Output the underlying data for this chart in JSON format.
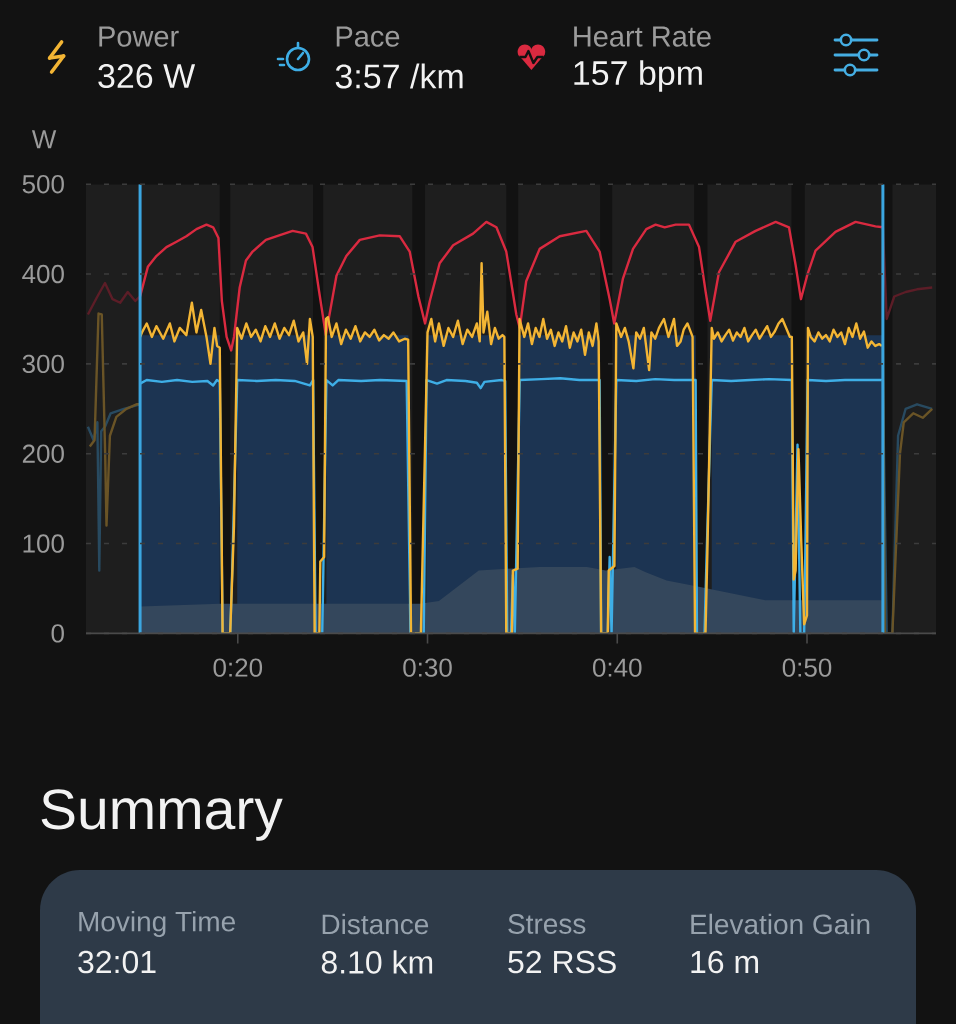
{
  "chart_data": [
    {
      "type": "line",
      "ylabel": "W",
      "xlim": [
        12.0,
        56.8
      ],
      "ylim": [
        0,
        500
      ],
      "xticks": [
        {
          "value": 20,
          "label": "0:20"
        },
        {
          "value": 30,
          "label": "0:30"
        },
        {
          "value": 40,
          "label": "0:40"
        },
        {
          "value": 50,
          "label": "0:50"
        }
      ],
      "yticks": [
        0,
        100,
        200,
        300,
        400,
        500
      ],
      "grid": "y",
      "legend": "top",
      "annotations": [
        "326 W",
        "3:57 /km",
        "157 bpm"
      ],
      "bands": [
        {
          "axis": "x",
          "from": 12.0,
          "to": 19.05,
          "color": "#1e1e1e"
        },
        {
          "axis": "x",
          "from": 19.6,
          "to": 23.97,
          "color": "#1e1e1e"
        },
        {
          "axis": "x",
          "from": 24.5,
          "to": 29.2,
          "color": "#1e1e1e"
        },
        {
          "axis": "x",
          "from": 29.87,
          "to": 34.15,
          "color": "#1e1e1e"
        },
        {
          "axis": "x",
          "from": 34.78,
          "to": 39.1,
          "color": "#1e1e1e"
        },
        {
          "axis": "x",
          "from": 39.73,
          "to": 44.05,
          "color": "#1e1e1e"
        },
        {
          "axis": "x",
          "from": 44.75,
          "to": 49.18,
          "color": "#1e1e1e"
        },
        {
          "axis": "x",
          "from": 49.88,
          "to": 54.0,
          "color": "#1e1e1e"
        },
        {
          "axis": "x",
          "from": 54.5,
          "to": 56.8,
          "color": "#1e1e1e"
        }
      ],
      "ref_lines": [
        {
          "axis": "x",
          "value": 14.85,
          "color": "#3ba6e0"
        },
        {
          "axis": "x",
          "value": 54.0,
          "color": "#3ba6e0"
        }
      ],
      "series": [
        {
          "type": "area",
          "color": "#1c3452",
          "x": [
            14.85,
            14.85,
            19.05,
            19.05,
            19.97,
            19.97,
            23.97,
            23.97,
            24.67,
            24.67,
            28.99,
            28.99,
            29.94,
            29.94,
            34.09,
            34.09,
            34.86,
            34.86,
            39.07,
            39.07,
            39.95,
            39.95,
            44.13,
            44.13,
            44.98,
            44.98,
            49.2,
            49.2,
            50.03,
            50.03,
            53.96,
            53.96
          ],
          "values": [
            0,
            332,
            332,
            0,
            0,
            332,
            332,
            0,
            0,
            332,
            332,
            0,
            0,
            332,
            332,
            0,
            0,
            332,
            332,
            0,
            0,
            332,
            332,
            0,
            0,
            332,
            332,
            0,
            0,
            332,
            332,
            0
          ]
        },
        {
          "type": "area",
          "color": "#34475c",
          "x": [
            14.85,
            19.05,
            24.3,
            29.6,
            30.6,
            32.7,
            34.2,
            35.9,
            38.4,
            39.4,
            40.9,
            41.5,
            42.6,
            44.3,
            47.8,
            51.5,
            54.0
          ],
          "values": [
            30,
            33,
            33,
            33,
            36,
            70,
            72,
            74,
            74,
            70,
            74,
            68,
            59,
            52,
            37,
            37,
            37
          ]
        },
        {
          "color": "#6a5426",
          "x": [
            12.2,
            12.45,
            12.66,
            12.83,
            13.01,
            13.08,
            13.26,
            13.6,
            14.13,
            14.66,
            14.85,
            34,
            54.0,
            54.1,
            54.5,
            54.9,
            55.1,
            55.6,
            56.1,
            56.6
          ],
          "values": [
            208,
            215,
            356,
            355,
            200,
            120,
            220,
            241,
            250,
            255,
            255,
            null,
            320,
            0,
            0,
            200,
            235,
            245,
            240,
            250
          ]
        },
        {
          "color": "#284a60",
          "x": [
            12.1,
            12.4,
            12.6,
            12.7,
            12.8,
            13.0,
            13.3,
            14.0,
            14.85,
            34,
            54.0,
            54.2,
            54.5,
            54.8,
            55.2,
            55.8,
            56.6
          ],
          "values": [
            230,
            215,
            235,
            70,
            225,
            230,
            245,
            250,
            255,
            null,
            282,
            0,
            0,
            220,
            250,
            255,
            250
          ]
        },
        {
          "color": "#5c1d27",
          "x": [
            12.1,
            12.6,
            13.0,
            13.4,
            13.8,
            14.2,
            14.6,
            14.85,
            34,
            54.0,
            54.2,
            54.6,
            55.2,
            55.8,
            56.6
          ],
          "values": [
            355,
            375,
            390,
            372,
            368,
            380,
            370,
            375,
            null,
            452,
            350,
            375,
            380,
            383,
            385
          ]
        },
        {
          "name": "Power",
          "color": "#f3b534",
          "x": [
            14.85,
            14.95,
            15.2,
            15.47,
            15.71,
            16.07,
            16.42,
            16.66,
            16.94,
            17.29,
            17.58,
            17.82,
            18.07,
            18.35,
            18.56,
            18.77,
            18.91,
            19.05,
            19.2,
            19.6,
            19.8,
            19.97,
            20.2,
            20.45,
            20.7,
            20.95,
            21.2,
            21.45,
            21.7,
            21.95,
            22.2,
            22.45,
            22.7,
            22.95,
            23.2,
            23.45,
            23.65,
            23.8,
            23.95,
            24.05,
            24.3,
            24.35,
            24.55,
            24.65,
            24.75,
            24.95,
            25.2,
            25.45,
            25.7,
            25.95,
            26.2,
            26.45,
            26.7,
            26.95,
            27.2,
            27.45,
            27.7,
            27.95,
            28.2,
            28.5,
            28.8,
            28.98,
            29.13,
            29.65,
            29.86,
            30.0,
            30.2,
            30.4,
            30.6,
            30.85,
            31.1,
            31.35,
            31.6,
            31.85,
            32.1,
            32.35,
            32.6,
            32.75,
            32.85,
            32.95,
            33.15,
            33.35,
            33.55,
            33.75,
            33.95,
            34.05,
            34.15,
            34.45,
            34.5,
            34.75,
            34.85,
            35.1,
            35.3,
            35.5,
            35.7,
            35.9,
            36.1,
            36.3,
            36.5,
            36.7,
            36.9,
            37.1,
            37.3,
            37.5,
            37.7,
            37.9,
            38.1,
            38.3,
            38.5,
            38.7,
            38.9,
            39.02,
            39.15,
            39.5,
            39.55,
            39.85,
            39.95,
            40.2,
            40.4,
            40.6,
            40.85,
            41.0,
            41.2,
            41.4,
            41.68,
            41.8,
            42.0,
            42.2,
            42.46,
            42.7,
            42.99,
            43.15,
            43.34,
            43.5,
            43.7,
            43.97,
            44.1,
            44.65,
            44.75,
            44.98,
            45.1,
            45.3,
            45.5,
            45.7,
            45.9,
            46.1,
            46.3,
            46.5,
            46.7,
            46.9,
            47.1,
            47.3,
            47.5,
            47.7,
            47.9,
            48.1,
            48.3,
            48.5,
            48.7,
            48.9,
            49.1,
            49.2,
            49.3,
            49.4,
            49.55,
            49.7,
            49.85,
            50.0,
            50.05,
            50.2,
            50.4,
            50.6,
            50.8,
            51.0,
            51.2,
            51.4,
            51.6,
            51.8,
            52.0,
            52.2,
            52.4,
            52.6,
            52.8,
            53.0,
            53.2,
            53.4,
            53.6,
            53.8,
            53.95
          ],
          "values": [
            330,
            335,
            345,
            330,
            342,
            328,
            345,
            325,
            340,
            332,
            368,
            335,
            360,
            330,
            300,
            340,
            320,
            318,
            0,
            0,
            120,
            340,
            328,
            345,
            330,
            338,
            325,
            342,
            330,
            345,
            328,
            340,
            332,
            348,
            325,
            335,
            300,
            350,
            330,
            0,
            0,
            80,
            85,
            350,
            352,
            330,
            345,
            322,
            338,
            328,
            342,
            325,
            335,
            330,
            338,
            326,
            332,
            328,
            335,
            325,
            328,
            327,
            0,
            0,
            200,
            335,
            350,
            325,
            345,
            320,
            340,
            330,
            348,
            322,
            338,
            330,
            345,
            325,
            412,
            335,
            358,
            322,
            340,
            328,
            332,
            330,
            0,
            0,
            70,
            72,
            350,
            330,
            345,
            322,
            340,
            330,
            350,
            328,
            338,
            320,
            335,
            325,
            342,
            318,
            335,
            325,
            338,
            310,
            335,
            320,
            345,
            325,
            0,
            0,
            70,
            75,
            345,
            330,
            340,
            325,
            295,
            335,
            328,
            340,
            293,
            335,
            328,
            340,
            350,
            330,
            350,
            320,
            325,
            338,
            345,
            330,
            0,
            0,
            90,
            340,
            328,
            335,
            325,
            332,
            338,
            326,
            335,
            330,
            340,
            325,
            332,
            338,
            328,
            335,
            342,
            330,
            336,
            345,
            350,
            340,
            330,
            330,
            60,
            70,
            205,
            100,
            10,
            20,
            340,
            330,
            325,
            335,
            328,
            332,
            325,
            338,
            330,
            335,
            322,
            340,
            330,
            345,
            328,
            336,
            318,
            325,
            320,
            322,
            320
          ]
        },
        {
          "name": "Pace",
          "color": "#3eaee6",
          "x": [
            14.85,
            15.2,
            16.0,
            16.8,
            17.6,
            18.4,
            18.7,
            18.9,
            19.05,
            19.2,
            19.6,
            19.7,
            19.97,
            21.0,
            22.0,
            23.0,
            23.8,
            23.97,
            24.1,
            24.45,
            24.5,
            24.67,
            25.0,
            25.3,
            26.5,
            27.5,
            28.9,
            29.1,
            29.8,
            29.95,
            30.5,
            31.0,
            32.0,
            32.6,
            32.8,
            33.0,
            33.9,
            34.09,
            34.2,
            34.4,
            34.5,
            34.6,
            34.86,
            36.0,
            37.0,
            38.0,
            39.07,
            39.15,
            39.5,
            39.6,
            39.7,
            39.95,
            41.0,
            42.0,
            43.0,
            44.13,
            44.2,
            44.6,
            44.7,
            44.98,
            46.0,
            47.0,
            48.0,
            49.2,
            49.3,
            49.5,
            49.65,
            49.85,
            49.9,
            50.03,
            51.0,
            52.0,
            53.0,
            54.0
          ],
          "values": [
            278,
            282,
            280,
            282,
            280,
            281,
            276,
            282,
            280,
            0,
            0,
            65,
            282,
            281,
            282,
            281,
            276,
            282,
            0,
            0,
            60,
            282,
            276,
            282,
            281,
            282,
            281,
            0,
            0,
            282,
            278,
            282,
            281,
            279,
            273,
            280,
            282,
            281,
            0,
            0,
            65,
            0,
            282,
            283,
            284,
            282,
            282,
            0,
            0,
            85,
            0,
            282,
            281,
            283,
            282,
            282,
            0,
            0,
            80,
            282,
            281,
            282,
            283,
            282,
            0,
            210,
            0,
            0,
            70,
            282,
            281,
            282,
            282,
            282
          ]
        },
        {
          "name": "Heart Rate",
          "color": "#da2a40",
          "x": [
            14.85,
            15.26,
            15.71,
            16.24,
            16.77,
            17.29,
            17.82,
            18.35,
            18.7,
            18.98,
            19.16,
            19.41,
            19.65,
            19.8,
            20.1,
            20.43,
            20.78,
            21.48,
            22.18,
            22.89,
            23.59,
            23.94,
            24.29,
            24.64,
            25.2,
            25.72,
            26.43,
            27.48,
            28.54,
            29.06,
            29.52,
            29.87,
            30.12,
            30.64,
            31.35,
            32.4,
            33.1,
            33.63,
            34.15,
            34.68,
            34.86,
            35.2,
            35.91,
            36.97,
            38.37,
            39.07,
            39.6,
            39.84,
            40.3,
            40.83,
            41.53,
            42.02,
            42.5,
            43.08,
            43.78,
            44.31,
            44.66,
            44.9,
            45.36,
            46.24,
            47.29,
            48.35,
            49.05,
            49.4,
            49.68,
            50.03,
            50.45,
            51.5,
            52.56,
            53.61,
            54.0
          ],
          "values": [
            375,
            408,
            420,
            430,
            436,
            442,
            450,
            455,
            452,
            440,
            370,
            330,
            315,
            330,
            385,
            415,
            425,
            438,
            443,
            448,
            445,
            430,
            380,
            332,
            398,
            420,
            438,
            443,
            442,
            425,
            375,
            345,
            370,
            412,
            432,
            445,
            458,
            452,
            425,
            355,
            340,
            392,
            428,
            442,
            448,
            425,
            372,
            345,
            395,
            428,
            450,
            455,
            452,
            455,
            455,
            430,
            380,
            348,
            402,
            436,
            448,
            458,
            452,
            410,
            372,
            400,
            426,
            447,
            458,
            453,
            452
          ]
        }
      ]
    },
    {
      "type": "other",
      "title": "Summary",
      "annotations": [
        "Moving Time",
        "32:01",
        "Distance",
        "8.10 km",
        "Stress",
        "52 RSS",
        "Elevation Gain",
        "16 m"
      ]
    }
  ]
}
